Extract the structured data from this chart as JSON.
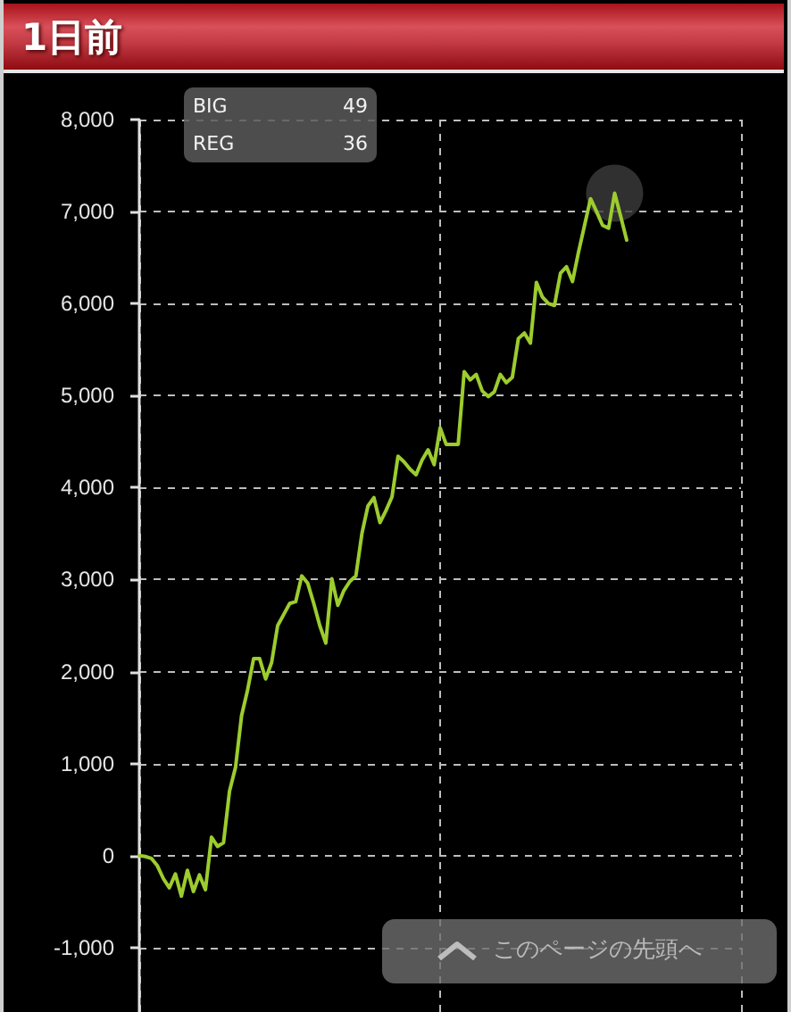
{
  "chart_data": {
    "type": "line",
    "title": "1日前",
    "categories": [
      null,
      null,
      null,
      null,
      null,
      null,
      null,
      null,
      null,
      null,
      null,
      null,
      null,
      null,
      null,
      null,
      null,
      null,
      null,
      null,
      null,
      null,
      null,
      null,
      null,
      null,
      null,
      null,
      null,
      null,
      null,
      null,
      null,
      null,
      null,
      null,
      null,
      null,
      null,
      null,
      null,
      null,
      null,
      null,
      null,
      null,
      null,
      null,
      null,
      null,
      null,
      null,
      null,
      null,
      null,
      null,
      null,
      null,
      null,
      null,
      null,
      null,
      null,
      null,
      null,
      null,
      null,
      null,
      null,
      null,
      null,
      null,
      null,
      null,
      null,
      null,
      null,
      null,
      null,
      null,
      null,
      null,
      null,
      null,
      null,
      null,
      null,
      null,
      null,
      null,
      null,
      null,
      null,
      null,
      null,
      null,
      null,
      null,
      null,
      null,
      null
    ],
    "series": [
      {
        "color": "#9ccc2e",
        "line_style": "solid",
        "values": [
          0,
          -10,
          -30,
          -110,
          -250,
          -350,
          -200,
          -440,
          -160,
          -390,
          -210,
          -370,
          200,
          100,
          140,
          700,
          960,
          1520,
          1800,
          2140,
          2140,
          1920,
          2100,
          2500,
          2620,
          2740,
          2760,
          3040,
          2960,
          2740,
          2500,
          2310,
          3010,
          2720,
          2880,
          2980,
          3040,
          3500,
          3800,
          3890,
          3620,
          3750,
          3900,
          4340,
          4280,
          4200,
          4140,
          4300,
          4410,
          4250,
          4650,
          4470,
          4470,
          4470,
          5260,
          5170,
          5230,
          5050,
          4990,
          5040,
          5230,
          5140,
          5200,
          5620,
          5680,
          5570,
          6230,
          6070,
          6000,
          5980,
          6330,
          6400,
          6240,
          6560,
          6850,
          7140,
          7000,
          6850,
          6820,
          7200,
          6950,
          6690,
          null,
          null,
          null,
          null,
          null,
          null,
          null,
          null,
          null,
          null,
          null,
          null,
          null,
          null,
          null,
          null,
          null,
          null,
          null
        ]
      },
      {
        "type": "scatter",
        "color": "#3c3c3c",
        "marker": "circle",
        "values": [
          null,
          null,
          null,
          null,
          null,
          null,
          null,
          null,
          null,
          null,
          null,
          null,
          null,
          null,
          null,
          null,
          null,
          null,
          null,
          null,
          null,
          null,
          null,
          null,
          null,
          null,
          null,
          null,
          null,
          null,
          null,
          null,
          null,
          null,
          null,
          null,
          null,
          null,
          null,
          null,
          null,
          null,
          null,
          null,
          null,
          null,
          null,
          null,
          null,
          null,
          null,
          null,
          null,
          null,
          null,
          null,
          null,
          null,
          null,
          null,
          null,
          null,
          null,
          null,
          null,
          null,
          null,
          null,
          null,
          null,
          null,
          null,
          null,
          null,
          null,
          null,
          null,
          null,
          null,
          7200,
          null,
          null,
          null,
          null,
          null,
          null,
          null,
          null,
          null,
          null,
          null,
          null,
          null,
          null,
          null,
          null,
          null,
          null,
          null,
          null,
          null
        ]
      }
    ],
    "ylim": [
      -1700,
      8000
    ],
    "yticks": [
      {
        "value": -1000,
        "label": "-1,000"
      },
      0,
      {
        "value": 1000,
        "label": "1,000"
      },
      {
        "value": 2000,
        "label": "2,000"
      },
      {
        "value": 3000,
        "label": "3,000"
      },
      {
        "value": 4000,
        "label": "4,000"
      },
      {
        "value": 5000,
        "label": "5,000"
      },
      {
        "value": 6000,
        "label": "6,000"
      },
      {
        "value": 7000,
        "label": "7,000"
      },
      {
        "value": 8000,
        "label": "8,000"
      }
    ],
    "grid": true,
    "tick_labels": "y",
    "annotations": [
      "BIG",
      "49",
      "REG",
      "36",
      "このページの先頭へ"
    ]
  }
}
